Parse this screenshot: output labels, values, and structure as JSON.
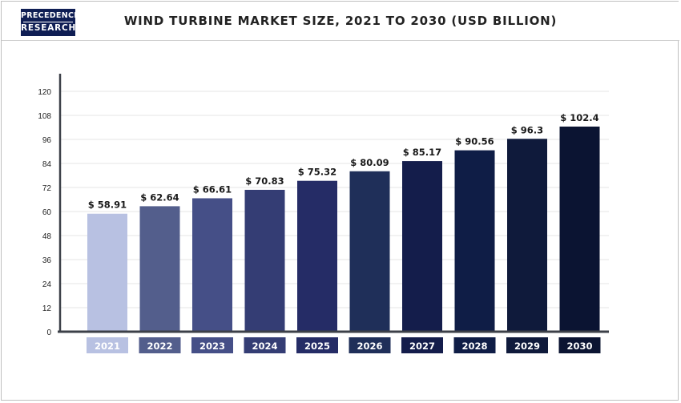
{
  "logo": {
    "line1": "PRECEDENCE",
    "line2": "RESEARCH"
  },
  "chart_data": {
    "type": "bar",
    "title": "WIND TURBINE MARKET SIZE, 2021 TO 2030 (USD BILLION)",
    "xlabel": "",
    "ylabel": "",
    "categories": [
      "2021",
      "2022",
      "2023",
      "2024",
      "2025",
      "2026",
      "2027",
      "2028",
      "2029",
      "2030"
    ],
    "values": [
      58.91,
      62.64,
      66.61,
      70.83,
      75.32,
      80.09,
      85.17,
      90.56,
      96.3,
      102.4
    ],
    "value_labels": [
      "$ 58.91",
      "$ 62.64",
      "$ 66.61",
      "$ 70.83",
      "$ 75.32",
      "$ 80.09",
      "$ 85.17",
      "$ 90.56",
      "$ 96.3",
      "$ 102.4"
    ],
    "yticks": [
      0,
      12,
      24,
      36,
      48,
      60,
      72,
      84,
      96,
      108,
      120
    ],
    "ylim": [
      0,
      120
    ],
    "grid": true,
    "colors": [
      "#b8c1e2",
      "#535e8c",
      "#454f87",
      "#343d74",
      "#252c66",
      "#1f2f59",
      "#141d4b",
      "#0f1d46",
      "#0f1a3b",
      "#0b1432"
    ],
    "axis_color": "#3c4048"
  }
}
